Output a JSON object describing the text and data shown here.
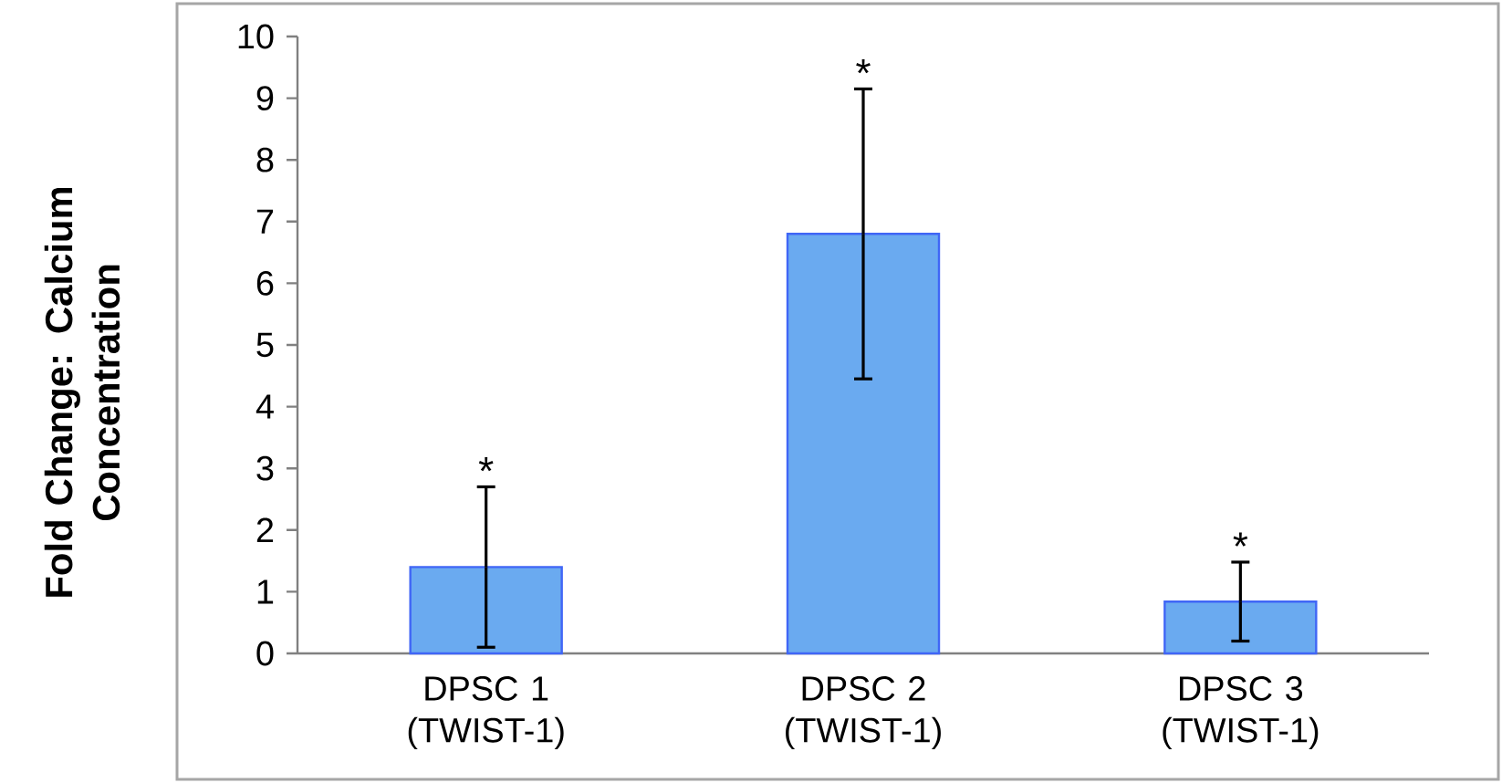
{
  "chart_data": {
    "type": "bar",
    "ylabel": "Fold Change: Calcium Concentration",
    "categories": [
      "DPSC 1 (TWIST-1)",
      "DPSC 2 (TWIST-1)",
      "DPSC 3 (TWIST-1)"
    ],
    "values": [
      1.4,
      6.8,
      0.84
    ],
    "errors": [
      1.3,
      2.35,
      0.64
    ],
    "color": "#6aaaf0",
    "ylim": [
      0,
      10
    ],
    "yticks": [
      0,
      1,
      2,
      3,
      4,
      5,
      6,
      7,
      8,
      9,
      10
    ],
    "annotations": [
      {
        "text": "*",
        "x": "DPSC 1 (TWIST-1)",
        "y": 2.7
      },
      {
        "text": "*",
        "x": "DPSC 2 (TWIST-1)",
        "y": 9.15
      },
      {
        "text": "*",
        "x": "DPSC 3 (TWIST-1)",
        "y": 1.48
      }
    ]
  }
}
